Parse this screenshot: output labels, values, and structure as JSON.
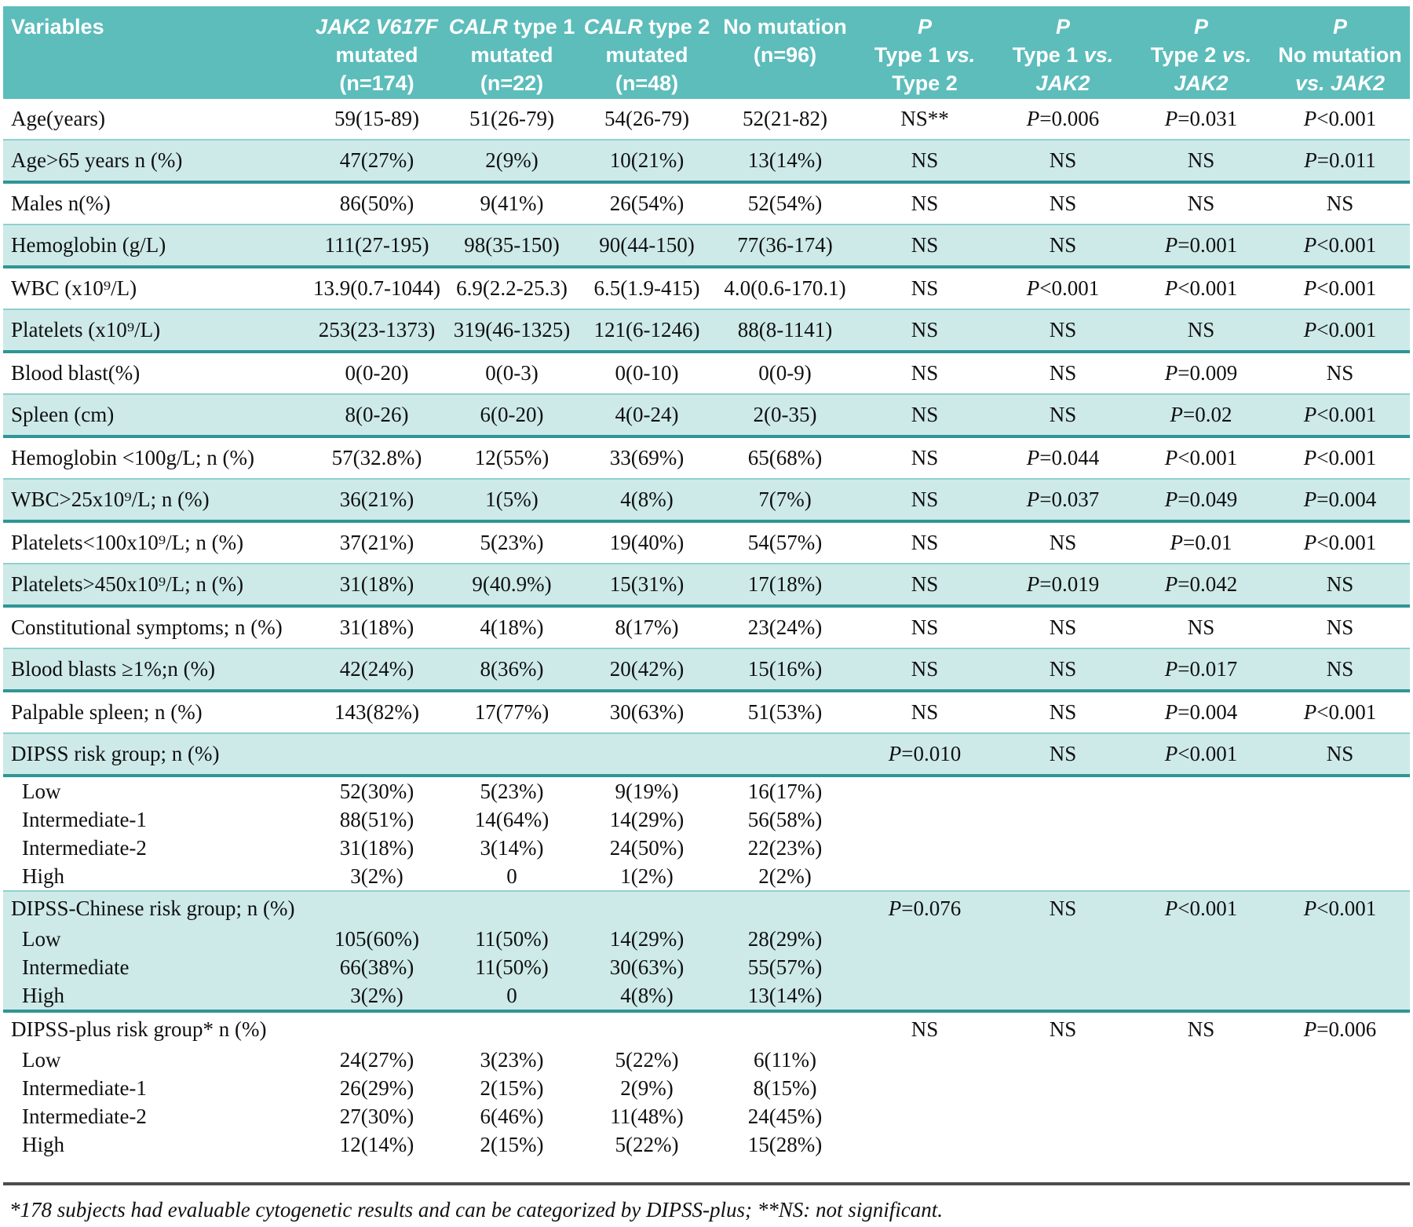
{
  "colors": {
    "header_bg": "#5cbdbb",
    "stripe_bg": "#cdeae9",
    "divider": "#2f9595",
    "footnote_rule": "#4d4d4d"
  },
  "header": {
    "columns": [
      {
        "lines": [
          "Variables"
        ]
      },
      {
        "lines": [
          "JAK2 V617F",
          "mutated",
          "(n=174)"
        ]
      },
      {
        "lines": [
          "CALR type 1",
          "mutated",
          "(n=22)"
        ]
      },
      {
        "lines": [
          "CALR type 2",
          "mutated",
          "(n=48)"
        ]
      },
      {
        "lines": [
          "No mutation",
          "(n=96)"
        ]
      },
      {
        "lines": [
          "P",
          "Type 1 vs.",
          "Type 2"
        ]
      },
      {
        "lines": [
          "P",
          "Type 1 vs.",
          "JAK2"
        ]
      },
      {
        "lines": [
          "P",
          "Type 2 vs.",
          "JAK2"
        ]
      },
      {
        "lines": [
          "P",
          "No mutation",
          "vs. JAK2"
        ]
      }
    ]
  },
  "rows": [
    {
      "label": "Age(years)",
      "shade": false,
      "sub": false,
      "values": [
        "59(15-89)",
        "51(26-79)",
        "54(26-79)",
        "52(21-82)",
        "NS**",
        "P=0.006",
        "P=0.031",
        "P<0.001"
      ]
    },
    {
      "label": "Age>65 years n (%)",
      "shade": true,
      "sub": false,
      "values": [
        "47(27%)",
        "2(9%)",
        "10(21%)",
        "13(14%)",
        "NS",
        "NS",
        "NS",
        "P=0.011"
      ]
    },
    {
      "label": "Males n(%)",
      "shade": false,
      "sub": false,
      "values": [
        "86(50%)",
        "9(41%)",
        "26(54%)",
        "52(54%)",
        "NS",
        "NS",
        "NS",
        "NS"
      ]
    },
    {
      "label": "Hemoglobin (g/L)",
      "shade": true,
      "sub": false,
      "values": [
        "111(27-195)",
        "98(35-150)",
        "90(44-150)",
        "77(36-174)",
        "NS",
        "NS",
        "P=0.001",
        "P<0.001"
      ]
    },
    {
      "label": "WBC (x10⁹/L)",
      "shade": false,
      "sub": false,
      "values": [
        "13.9(0.7-1044)",
        "6.9(2.2-25.3)",
        "6.5(1.9-415)",
        "4.0(0.6-170.1)",
        "NS",
        "P<0.001",
        "P<0.001",
        "P<0.001"
      ]
    },
    {
      "label": "Platelets (x10⁹/L)",
      "shade": true,
      "sub": false,
      "values": [
        "253(23-1373)",
        "319(46-1325)",
        "121(6-1246)",
        "88(8-1141)",
        "NS",
        "NS",
        "NS",
        "P<0.001"
      ]
    },
    {
      "label": "Blood blast(%)",
      "shade": false,
      "sub": false,
      "values": [
        "0(0-20)",
        "0(0-3)",
        "0(0-10)",
        "0(0-9)",
        "NS",
        "NS",
        "P=0.009",
        "NS"
      ]
    },
    {
      "label": "Spleen (cm)",
      "shade": true,
      "sub": false,
      "values": [
        "8(0-26)",
        "6(0-20)",
        "4(0-24)",
        "2(0-35)",
        "NS",
        "NS",
        "P=0.02",
        "P<0.001"
      ]
    },
    {
      "label": "Hemoglobin <100g/L; n (%)",
      "shade": false,
      "sub": false,
      "values": [
        "57(32.8%)",
        "12(55%)",
        "33(69%)",
        "65(68%)",
        "NS",
        "P=0.044",
        "P<0.001",
        "P<0.001"
      ]
    },
    {
      "label": "WBC>25x10⁹/L; n (%)",
      "shade": true,
      "sub": false,
      "values": [
        "36(21%)",
        "1(5%)",
        "4(8%)",
        "7(7%)",
        "NS",
        "P=0.037",
        "P=0.049",
        "P=0.004"
      ]
    },
    {
      "label": "Platelets<100x10⁹/L; n (%)",
      "shade": false,
      "sub": false,
      "values": [
        "37(21%)",
        "5(23%)",
        "19(40%)",
        "54(57%)",
        "NS",
        "NS",
        "P=0.01",
        "P<0.001"
      ]
    },
    {
      "label": "Platelets>450x10⁹/L; n (%)",
      "shade": true,
      "sub": false,
      "values": [
        "31(18%)",
        "9(40.9%)",
        "15(31%)",
        "17(18%)",
        "NS",
        "P=0.019",
        "P=0.042",
        "NS"
      ]
    },
    {
      "label": "Constitutional symptoms; n (%)",
      "shade": false,
      "sub": false,
      "values": [
        "31(18%)",
        "4(18%)",
        "8(17%)",
        "23(24%)",
        "NS",
        "NS",
        "NS",
        "NS"
      ]
    },
    {
      "label": "Blood blasts ≥1%;n (%)",
      "shade": true,
      "sub": false,
      "values": [
        "42(24%)",
        "8(36%)",
        "20(42%)",
        "15(16%)",
        "NS",
        "NS",
        "P=0.017",
        "NS"
      ]
    },
    {
      "label": "Palpable spleen; n (%)",
      "shade": false,
      "sub": false,
      "values": [
        "143(82%)",
        "17(77%)",
        "30(63%)",
        "51(53%)",
        "NS",
        "NS",
        "P=0.004",
        "P<0.001"
      ]
    },
    {
      "label": "DIPSS risk group; n (%)",
      "shade": true,
      "sub": false,
      "values": [
        "",
        "",
        "",
        "",
        "P=0.010",
        "NS",
        "P<0.001",
        "NS"
      ]
    },
    {
      "label": "Low",
      "shade": false,
      "sub": true,
      "values": [
        "52(30%)",
        "5(23%)",
        "9(19%)",
        "16(17%)",
        "",
        "",
        "",
        ""
      ]
    },
    {
      "label": "Intermediate-1",
      "shade": false,
      "sub": true,
      "values": [
        "88(51%)",
        "14(64%)",
        "14(29%)",
        "56(58%)",
        "",
        "",
        "",
        ""
      ]
    },
    {
      "label": "Intermediate-2",
      "shade": false,
      "sub": true,
      "values": [
        "31(18%)",
        "3(14%)",
        "24(50%)",
        "22(23%)",
        "",
        "",
        "",
        ""
      ]
    },
    {
      "label": "High",
      "shade": false,
      "sub": true,
      "values": [
        "3(2%)",
        "0",
        "1(2%)",
        "2(2%)",
        "",
        "",
        "",
        ""
      ]
    },
    {
      "label": "DIPSS-Chinese risk group; n (%)",
      "shade": true,
      "sub": false,
      "group": true,
      "values": [
        "",
        "",
        "",
        "",
        "P=0.076",
        "NS",
        "P<0.001",
        "P<0.001"
      ]
    },
    {
      "label": "Low",
      "shade": true,
      "sub": true,
      "values": [
        "105(60%)",
        "11(50%)",
        "14(29%)",
        "28(29%)",
        "",
        "",
        "",
        ""
      ]
    },
    {
      "label": "Intermediate",
      "shade": true,
      "sub": true,
      "values": [
        "66(38%)",
        "11(50%)",
        "30(63%)",
        "55(57%)",
        "",
        "",
        "",
        ""
      ]
    },
    {
      "label": "High",
      "shade": true,
      "sub": true,
      "values": [
        "3(2%)",
        "0",
        "4(8%)",
        "13(14%)",
        "",
        "",
        "",
        ""
      ]
    },
    {
      "label": "DIPSS-plus risk group* n (%)",
      "shade": false,
      "sub": false,
      "group": true,
      "values": [
        "",
        "",
        "",
        "",
        "NS",
        "NS",
        "NS",
        "P=0.006"
      ]
    },
    {
      "label": "Low",
      "shade": false,
      "sub": true,
      "values": [
        "24(27%)",
        "3(23%)",
        "5(22%)",
        "6(11%)",
        "",
        "",
        "",
        ""
      ]
    },
    {
      "label": "Intermediate-1",
      "shade": false,
      "sub": true,
      "values": [
        "26(29%)",
        "2(15%)",
        "2(9%)",
        "8(15%)",
        "",
        "",
        "",
        ""
      ]
    },
    {
      "label": "Intermediate-2",
      "shade": false,
      "sub": true,
      "values": [
        "27(30%)",
        "6(46%)",
        "11(48%)",
        "24(45%)",
        "",
        "",
        "",
        ""
      ]
    },
    {
      "label": "High",
      "shade": false,
      "sub": true,
      "values": [
        "12(14%)",
        "2(15%)",
        "5(22%)",
        "15(28%)",
        "",
        "",
        "",
        ""
      ]
    }
  ],
  "footnote": "*178 subjects had evaluable cytogenetic results and can be categorized by DIPSS-plus; **NS: not significant."
}
